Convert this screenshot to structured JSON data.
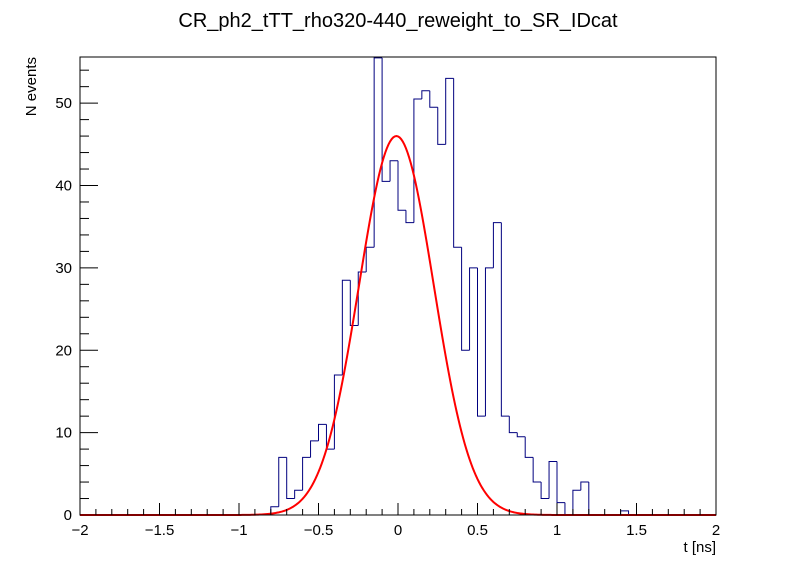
{
  "chart_data": {
    "type": "histogram",
    "title": "CR_ph2_tTT_rho320-440_reweight_to_SR_IDcat",
    "xlabel": "t [ns]",
    "ylabel": "N events",
    "xlim": [
      -2,
      2
    ],
    "ylim": [
      0,
      55.6
    ],
    "bin_width": 0.05,
    "x_ticks": [
      {
        "value": -2,
        "label": "−2"
      },
      {
        "value": -1.5,
        "label": "−1.5"
      },
      {
        "value": -1,
        "label": "−1"
      },
      {
        "value": -0.5,
        "label": "−0.5"
      },
      {
        "value": 0,
        "label": "0"
      },
      {
        "value": 0.5,
        "label": "0.5"
      },
      {
        "value": 1,
        "label": "1"
      },
      {
        "value": 1.5,
        "label": "1.5"
      },
      {
        "value": 2,
        "label": "2"
      }
    ],
    "y_ticks": [
      {
        "value": 0,
        "label": "0"
      },
      {
        "value": 10,
        "label": "10"
      },
      {
        "value": 20,
        "label": "20"
      },
      {
        "value": 30,
        "label": "30"
      },
      {
        "value": 40,
        "label": "40"
      },
      {
        "value": 50,
        "label": "50"
      }
    ],
    "series": [
      {
        "name": "histogram",
        "color": "#00007f",
        "bins": [
          {
            "x0": -0.8,
            "x1": -0.75,
            "value": 1
          },
          {
            "x0": -0.75,
            "x1": -0.7,
            "value": 7
          },
          {
            "x0": -0.7,
            "x1": -0.65,
            "value": 2
          },
          {
            "x0": -0.65,
            "x1": -0.6,
            "value": 3
          },
          {
            "x0": -0.6,
            "x1": -0.55,
            "value": 7
          },
          {
            "x0": -0.55,
            "x1": -0.5,
            "value": 9
          },
          {
            "x0": -0.5,
            "x1": -0.45,
            "value": 11
          },
          {
            "x0": -0.45,
            "x1": -0.4,
            "value": 8
          },
          {
            "x0": -0.4,
            "x1": -0.35,
            "value": 17
          },
          {
            "x0": -0.35,
            "x1": -0.3,
            "value": 28.5
          },
          {
            "x0": -0.3,
            "x1": -0.25,
            "value": 23
          },
          {
            "x0": -0.25,
            "x1": -0.2,
            "value": 29.5
          },
          {
            "x0": -0.2,
            "x1": -0.15,
            "value": 32.5
          },
          {
            "x0": -0.15,
            "x1": -0.1,
            "value": 55.5
          },
          {
            "x0": -0.1,
            "x1": -0.05,
            "value": 40.5
          },
          {
            "x0": -0.05,
            "x1": 0.0,
            "value": 43
          },
          {
            "x0": 0.0,
            "x1": 0.05,
            "value": 37
          },
          {
            "x0": 0.05,
            "x1": 0.1,
            "value": 35.5
          },
          {
            "x0": 0.1,
            "x1": 0.15,
            "value": 50.5
          },
          {
            "x0": 0.15,
            "x1": 0.2,
            "value": 51.5
          },
          {
            "x0": 0.2,
            "x1": 0.25,
            "value": 49.5
          },
          {
            "x0": 0.25,
            "x1": 0.3,
            "value": 45
          },
          {
            "x0": 0.3,
            "x1": 0.35,
            "value": 53
          },
          {
            "x0": 0.35,
            "x1": 0.4,
            "value": 32.5
          },
          {
            "x0": 0.4,
            "x1": 0.45,
            "value": 20
          },
          {
            "x0": 0.45,
            "x1": 0.5,
            "value": 30
          },
          {
            "x0": 0.5,
            "x1": 0.55,
            "value": 12
          },
          {
            "x0": 0.55,
            "x1": 0.6,
            "value": 30
          },
          {
            "x0": 0.6,
            "x1": 0.65,
            "value": 35.5
          },
          {
            "x0": 0.65,
            "x1": 0.7,
            "value": 12
          },
          {
            "x0": 0.7,
            "x1": 0.75,
            "value": 10
          },
          {
            "x0": 0.75,
            "x1": 0.8,
            "value": 9.5
          },
          {
            "x0": 0.8,
            "x1": 0.85,
            "value": 7
          },
          {
            "x0": 0.85,
            "x1": 0.9,
            "value": 4
          },
          {
            "x0": 0.9,
            "x1": 0.95,
            "value": 2
          },
          {
            "x0": 0.95,
            "x1": 1.0,
            "value": 6.5
          },
          {
            "x0": 1.0,
            "x1": 1.05,
            "value": 1.5
          },
          {
            "x0": 1.05,
            "x1": 1.1,
            "value": 0
          },
          {
            "x0": 1.1,
            "x1": 1.15,
            "value": 3
          },
          {
            "x0": 1.15,
            "x1": 1.2,
            "value": 4
          },
          {
            "x0": 1.2,
            "x1": 1.25,
            "value": 0
          },
          {
            "x0": 1.25,
            "x1": 1.3,
            "value": 0
          },
          {
            "x0": 1.3,
            "x1": 1.35,
            "value": 0
          },
          {
            "x0": 1.35,
            "x1": 1.4,
            "value": 0
          },
          {
            "x0": 1.4,
            "x1": 1.45,
            "value": 0.5
          }
        ]
      },
      {
        "name": "gaussian fit",
        "color": "#ff0000",
        "function": "gaussian",
        "amplitude": 46,
        "mean": -0.01,
        "sigma": 0.235
      }
    ]
  }
}
